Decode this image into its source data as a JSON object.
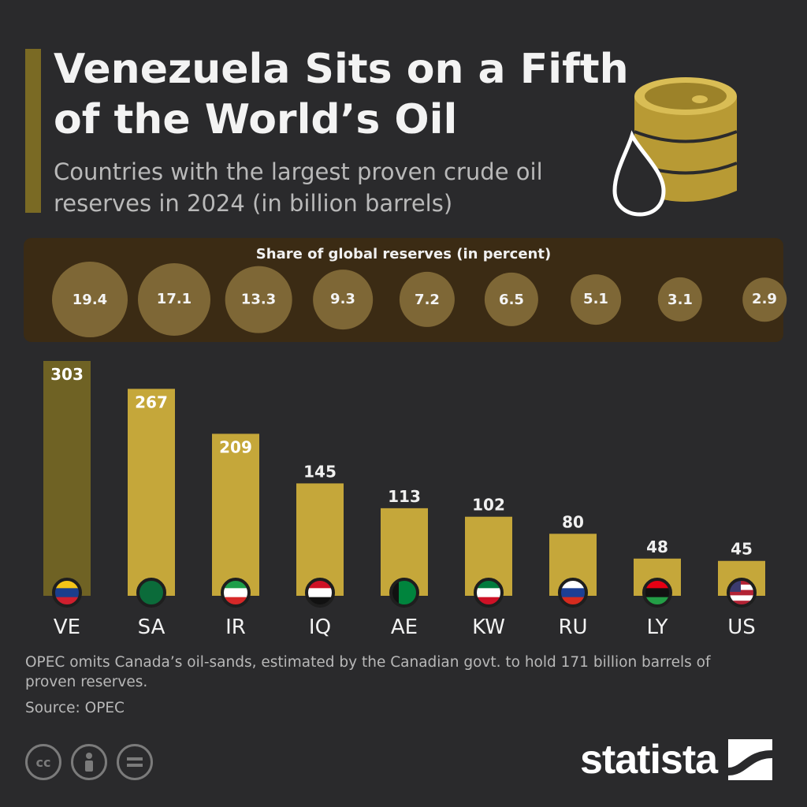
{
  "header": {
    "title": "Venezuela Sits on a Fifth of the World’s Oil",
    "subtitle": "Countries with the largest proven crude oil reserves in 2024 (in billion barrels)"
  },
  "share_panel": {
    "title": "Share of global reserves (in percent)",
    "values": [
      "19.4",
      "17.1",
      "13.3",
      "9.3",
      "7.2",
      "6.5",
      "5.1",
      "3.1",
      "2.9"
    ]
  },
  "footer": {
    "note": "OPEC omits Canada’s oil-sands, estimated by the Canadian govt. to hold 171 billion barrels of proven reserves.",
    "source": "Source: OPEC",
    "brand": "statista"
  },
  "colors": {
    "background": "#2a2a2c",
    "bar": "#c5a73a",
    "bar_highlight": "#6f6224",
    "share_panel": "#3b2b14",
    "bubble": "#7e6736"
  },
  "icons": [
    "barrel-icon",
    "oil-drop-icon",
    "cc-icon",
    "by-icon",
    "nd-icon",
    "statista-logo-icon"
  ],
  "chart_data": {
    "type": "bar",
    "title": "Countries with the largest proven crude oil reserves in 2024 (in billion barrels)",
    "categories": [
      "VE",
      "SA",
      "IR",
      "IQ",
      "AE",
      "KW",
      "RU",
      "LY",
      "US"
    ],
    "values": [
      303,
      267,
      209,
      145,
      113,
      102,
      80,
      48,
      45
    ],
    "share_percent": [
      19.4,
      17.1,
      13.3,
      9.3,
      7.2,
      6.5,
      5.1,
      3.1,
      2.9
    ],
    "xlabel": "",
    "ylabel": "billion barrels",
    "ylim": [
      0,
      303
    ],
    "grid": false,
    "legend": "none"
  }
}
